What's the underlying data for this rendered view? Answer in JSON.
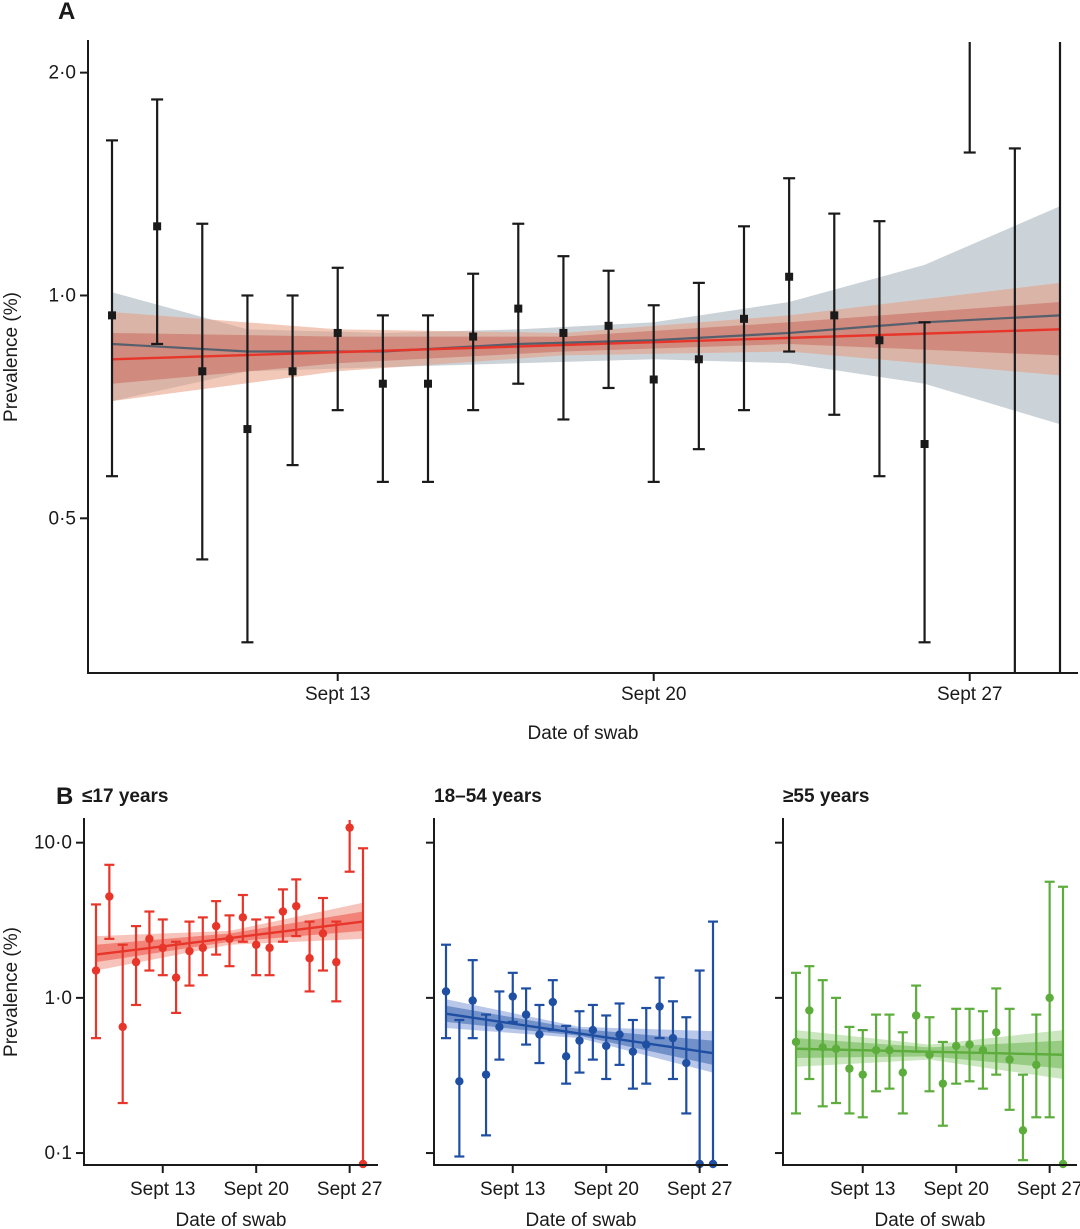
{
  "figure": {
    "panel_a_letter": "A",
    "panel_b_letter": "B"
  },
  "chart_data": [
    {
      "id": "A",
      "type": "scatter",
      "title": "",
      "xlabel": "Date of swab",
      "ylabel": "Prevalence (%)",
      "yscale": "log",
      "ylim": [
        0.31,
        2.2
      ],
      "xlim": [
        "2020-09-08",
        "2020-09-30"
      ],
      "x_ticks": [
        {
          "date": "2020-09-13",
          "label": "Sept 13"
        },
        {
          "date": "2020-09-20",
          "label": "Sept 20"
        },
        {
          "date": "2020-09-27",
          "label": "Sept 27"
        }
      ],
      "y_ticks": [
        {
          "value": 0.5,
          "label": "0·5"
        },
        {
          "value": 1.0,
          "label": "1·0"
        },
        {
          "value": 2.0,
          "label": "2·0"
        }
      ],
      "grid": false,
      "colors": {
        "points": "#1a1a1a",
        "fit_exponential": "#e8352a",
        "fit_spline": "#55606c",
        "band_exponential": "#e89a7e",
        "band_spline": "#b9c4cc"
      },
      "points": [
        {
          "x": "2020-09-08",
          "y": 0.94,
          "lo": 0.57,
          "hi": 1.62
        },
        {
          "x": "2020-09-09",
          "y": 1.24,
          "lo": 0.86,
          "hi": 1.84
        },
        {
          "x": "2020-09-10",
          "y": 0.79,
          "lo": 0.44,
          "hi": 1.25
        },
        {
          "x": "2020-09-11",
          "y": 0.66,
          "lo": 0.34,
          "hi": 1.0
        },
        {
          "x": "2020-09-12",
          "y": 0.79,
          "lo": 0.59,
          "hi": 1.0
        },
        {
          "x": "2020-09-13",
          "y": 0.89,
          "lo": 0.7,
          "hi": 1.09
        },
        {
          "x": "2020-09-14",
          "y": 0.76,
          "lo": 0.56,
          "hi": 0.94
        },
        {
          "x": "2020-09-15",
          "y": 0.76,
          "lo": 0.56,
          "hi": 0.94
        },
        {
          "x": "2020-09-16",
          "y": 0.88,
          "lo": 0.7,
          "hi": 1.07
        },
        {
          "x": "2020-09-17",
          "y": 0.96,
          "lo": 0.76,
          "hi": 1.25
        },
        {
          "x": "2020-09-18",
          "y": 0.89,
          "lo": 0.68,
          "hi": 1.13
        },
        {
          "x": "2020-09-19",
          "y": 0.91,
          "lo": 0.75,
          "hi": 1.08
        },
        {
          "x": "2020-09-20",
          "y": 0.77,
          "lo": 0.56,
          "hi": 0.97
        },
        {
          "x": "2020-09-21",
          "y": 0.82,
          "lo": 0.62,
          "hi": 1.04
        },
        {
          "x": "2020-09-22",
          "y": 0.93,
          "lo": 0.7,
          "hi": 1.24
        },
        {
          "x": "2020-09-23",
          "y": 1.06,
          "lo": 0.84,
          "hi": 1.44
        },
        {
          "x": "2020-09-24",
          "y": 0.94,
          "lo": 0.69,
          "hi": 1.29
        },
        {
          "x": "2020-09-25",
          "y": 0.87,
          "lo": 0.57,
          "hi": 1.26
        },
        {
          "x": "2020-09-26",
          "y": 0.63,
          "lo": 0.34,
          "hi": 0.92
        },
        {
          "x": "2020-09-27",
          "y": null,
          "lo": 1.56,
          "hi": 2.2
        },
        {
          "x": "2020-09-28",
          "y": null,
          "lo": 0.31,
          "hi": 1.58
        },
        {
          "x": "2020-09-29",
          "y": null,
          "lo": 0.31,
          "hi": 2.2
        }
      ],
      "fits": [
        {
          "kind": "exponential",
          "line": [
            {
              "x": "2020-09-08",
              "y": 0.82
            },
            {
              "x": "2020-09-29",
              "y": 0.9
            }
          ],
          "band_outer": [
            {
              "x": "2020-09-08",
              "lo": 0.72,
              "hi": 0.95
            },
            {
              "x": "2020-09-13",
              "lo": 0.79,
              "hi": 0.9
            },
            {
              "x": "2020-09-18",
              "lo": 0.83,
              "hi": 0.89
            },
            {
              "x": "2020-09-23",
              "lo": 0.84,
              "hi": 0.94
            },
            {
              "x": "2020-09-29",
              "lo": 0.78,
              "hi": 1.04
            }
          ],
          "band_inner": [
            {
              "x": "2020-09-08",
              "lo": 0.76,
              "hi": 0.89
            },
            {
              "x": "2020-09-13",
              "lo": 0.81,
              "hi": 0.88
            },
            {
              "x": "2020-09-18",
              "lo": 0.84,
              "hi": 0.88
            },
            {
              "x": "2020-09-23",
              "lo": 0.86,
              "hi": 0.92
            },
            {
              "x": "2020-09-29",
              "lo": 0.83,
              "hi": 0.98
            }
          ]
        },
        {
          "kind": "spline",
          "line": [
            {
              "x": "2020-09-08",
              "y": 0.86
            },
            {
              "x": "2020-09-11",
              "y": 0.84
            },
            {
              "x": "2020-09-14",
              "y": 0.84
            },
            {
              "x": "2020-09-17",
              "y": 0.86
            },
            {
              "x": "2020-09-20",
              "y": 0.87
            },
            {
              "x": "2020-09-23",
              "y": 0.89
            },
            {
              "x": "2020-09-26",
              "y": 0.92
            },
            {
              "x": "2020-09-29",
              "y": 0.94
            }
          ],
          "band": [
            {
              "x": "2020-09-08",
              "lo": 0.72,
              "hi": 1.01
            },
            {
              "x": "2020-09-11",
              "lo": 0.79,
              "hi": 0.9
            },
            {
              "x": "2020-09-14",
              "lo": 0.8,
              "hi": 0.89
            },
            {
              "x": "2020-09-17",
              "lo": 0.81,
              "hi": 0.9
            },
            {
              "x": "2020-09-20",
              "lo": 0.82,
              "hi": 0.92
            },
            {
              "x": "2020-09-23",
              "lo": 0.81,
              "hi": 0.98
            },
            {
              "x": "2020-09-26",
              "lo": 0.76,
              "hi": 1.1
            },
            {
              "x": "2020-09-29",
              "lo": 0.67,
              "hi": 1.32
            }
          ]
        }
      ]
    },
    {
      "id": "B1",
      "type": "scatter",
      "title": "≤17 years",
      "xlabel": "Date of swab",
      "ylabel": "Prevalence (%)",
      "yscale": "log",
      "ylim": [
        0.085,
        14
      ],
      "xlim": [
        "2020-09-08",
        "2020-09-29"
      ],
      "x_ticks": [
        {
          "date": "2020-09-13",
          "label": "Sept 13"
        },
        {
          "date": "2020-09-20",
          "label": "Sept 20"
        },
        {
          "date": "2020-09-27",
          "label": "Sept 27"
        }
      ],
      "y_ticks": [
        {
          "value": 0.1,
          "label": "0·1"
        },
        {
          "value": 1.0,
          "label": "1·0"
        },
        {
          "value": 10.0,
          "label": "10·0"
        }
      ],
      "color": "#e8352a",
      "band_color": "#f29d8e",
      "points": [
        {
          "x": "2020-09-08",
          "y": 1.5,
          "lo": 0.55,
          "hi": 4.0
        },
        {
          "x": "2020-09-09",
          "y": 4.5,
          "lo": 2.4,
          "hi": 7.2
        },
        {
          "x": "2020-09-10",
          "y": 0.65,
          "lo": 0.21,
          "hi": 2.2
        },
        {
          "x": "2020-09-11",
          "y": 1.7,
          "lo": 0.9,
          "hi": 2.9
        },
        {
          "x": "2020-09-12",
          "y": 2.4,
          "lo": 1.5,
          "hi": 3.6
        },
        {
          "x": "2020-09-13",
          "y": 2.1,
          "lo": 1.4,
          "hi": 3.2
        },
        {
          "x": "2020-09-14",
          "y": 1.35,
          "lo": 0.8,
          "hi": 2.3
        },
        {
          "x": "2020-09-15",
          "y": 2.0,
          "lo": 1.2,
          "hi": 3.1
        },
        {
          "x": "2020-09-16",
          "y": 2.1,
          "lo": 1.4,
          "hi": 3.3
        },
        {
          "x": "2020-09-17",
          "y": 2.9,
          "lo": 1.9,
          "hi": 4.2
        },
        {
          "x": "2020-09-18",
          "y": 2.4,
          "lo": 1.6,
          "hi": 3.4
        },
        {
          "x": "2020-09-19",
          "y": 3.3,
          "lo": 2.3,
          "hi": 4.6
        },
        {
          "x": "2020-09-20",
          "y": 2.2,
          "lo": 1.4,
          "hi": 3.2
        },
        {
          "x": "2020-09-21",
          "y": 2.1,
          "lo": 1.4,
          "hi": 3.3
        },
        {
          "x": "2020-09-22",
          "y": 3.6,
          "lo": 2.3,
          "hi": 5.0
        },
        {
          "x": "2020-09-23",
          "y": 3.9,
          "lo": 2.5,
          "hi": 5.8
        },
        {
          "x": "2020-09-24",
          "y": 1.8,
          "lo": 1.1,
          "hi": 3.1
        },
        {
          "x": "2020-09-25",
          "y": 2.6,
          "lo": 1.5,
          "hi": 4.4
        },
        {
          "x": "2020-09-26",
          "y": 1.7,
          "lo": 0.95,
          "hi": 3.1
        },
        {
          "x": "2020-09-27",
          "y": 12.5,
          "lo": 6.5,
          "hi": 14
        },
        {
          "x": "2020-09-28",
          "y": 0.085,
          "lo": 0.085,
          "hi": 9.2
        }
      ],
      "fit": {
        "line": [
          {
            "x": "2020-09-08",
            "y": 1.9
          },
          {
            "x": "2020-09-28",
            "y": 3.1
          }
        ],
        "band_outer": [
          {
            "x": "2020-09-08",
            "lo": 1.5,
            "hi": 2.5
          },
          {
            "x": "2020-09-18",
            "lo": 2.2,
            "hi": 2.7
          },
          {
            "x": "2020-09-28",
            "lo": 2.4,
            "hi": 4.1
          }
        ],
        "band_inner": [
          {
            "x": "2020-09-08",
            "lo": 1.7,
            "hi": 2.2
          },
          {
            "x": "2020-09-18",
            "lo": 2.3,
            "hi": 2.6
          },
          {
            "x": "2020-09-28",
            "lo": 2.7,
            "hi": 3.6
          }
        ]
      }
    },
    {
      "id": "B2",
      "type": "scatter",
      "title": "18–54 years",
      "xlabel": "Date of swab",
      "yscale": "log",
      "ylim": [
        0.085,
        14
      ],
      "xlim": [
        "2020-09-08",
        "2020-09-29"
      ],
      "x_ticks": [
        {
          "date": "2020-09-13",
          "label": "Sept 13"
        },
        {
          "date": "2020-09-20",
          "label": "Sept 20"
        },
        {
          "date": "2020-09-27",
          "label": "Sept 27"
        }
      ],
      "color": "#1f4fa3",
      "band_color": "#8aa2d8",
      "points": [
        {
          "x": "2020-09-08",
          "y": 1.1,
          "lo": 0.55,
          "hi": 2.2
        },
        {
          "x": "2020-09-09",
          "y": 0.29,
          "lo": 0.095,
          "hi": 0.72
        },
        {
          "x": "2020-09-10",
          "y": 0.96,
          "lo": 0.55,
          "hi": 1.75
        },
        {
          "x": "2020-09-11",
          "y": 0.32,
          "lo": 0.13,
          "hi": 0.78
        },
        {
          "x": "2020-09-12",
          "y": 0.65,
          "lo": 0.4,
          "hi": 1.1
        },
        {
          "x": "2020-09-13",
          "y": 1.02,
          "lo": 0.7,
          "hi": 1.45
        },
        {
          "x": "2020-09-14",
          "y": 0.78,
          "lo": 0.5,
          "hi": 1.15
        },
        {
          "x": "2020-09-15",
          "y": 0.58,
          "lo": 0.38,
          "hi": 0.9
        },
        {
          "x": "2020-09-16",
          "y": 0.94,
          "lo": 0.62,
          "hi": 1.3
        },
        {
          "x": "2020-09-17",
          "y": 0.42,
          "lo": 0.28,
          "hi": 0.66
        },
        {
          "x": "2020-09-18",
          "y": 0.53,
          "lo": 0.33,
          "hi": 0.82
        },
        {
          "x": "2020-09-19",
          "y": 0.62,
          "lo": 0.4,
          "hi": 0.9
        },
        {
          "x": "2020-09-20",
          "y": 0.49,
          "lo": 0.3,
          "hi": 0.77
        },
        {
          "x": "2020-09-21",
          "y": 0.58,
          "lo": 0.37,
          "hi": 0.92
        },
        {
          "x": "2020-09-22",
          "y": 0.45,
          "lo": 0.26,
          "hi": 0.72
        },
        {
          "x": "2020-09-23",
          "y": 0.5,
          "lo": 0.28,
          "hi": 0.86
        },
        {
          "x": "2020-09-24",
          "y": 0.88,
          "lo": 0.55,
          "hi": 1.35
        },
        {
          "x": "2020-09-25",
          "y": 0.55,
          "lo": 0.3,
          "hi": 0.95
        },
        {
          "x": "2020-09-26",
          "y": 0.38,
          "lo": 0.18,
          "hi": 0.75
        },
        {
          "x": "2020-09-27",
          "y": 0.085,
          "lo": 0.085,
          "hi": 1.5
        },
        {
          "x": "2020-09-28",
          "y": 0.085,
          "lo": 0.085,
          "hi": 3.1
        }
      ],
      "fit": {
        "line": [
          {
            "x": "2020-09-08",
            "y": 0.79
          },
          {
            "x": "2020-09-28",
            "y": 0.44
          }
        ],
        "band_outer": [
          {
            "x": "2020-09-08",
            "lo": 0.64,
            "hi": 0.98
          },
          {
            "x": "2020-09-18",
            "lo": 0.55,
            "hi": 0.65
          },
          {
            "x": "2020-09-28",
            "lo": 0.33,
            "hi": 0.61
          }
        ],
        "band_inner": [
          {
            "x": "2020-09-08",
            "lo": 0.7,
            "hi": 0.89
          },
          {
            "x": "2020-09-18",
            "lo": 0.57,
            "hi": 0.63
          },
          {
            "x": "2020-09-28",
            "lo": 0.37,
            "hi": 0.53
          }
        ]
      }
    },
    {
      "id": "B3",
      "type": "scatter",
      "title": "≥55 years",
      "xlabel": "Date of swab",
      "yscale": "log",
      "ylim": [
        0.085,
        14
      ],
      "xlim": [
        "2020-09-08",
        "2020-09-29"
      ],
      "x_ticks": [
        {
          "date": "2020-09-13",
          "label": "Sept 13"
        },
        {
          "date": "2020-09-20",
          "label": "Sept 20"
        },
        {
          "date": "2020-09-27",
          "label": "Sept 27"
        }
      ],
      "color": "#5cad3c",
      "band_color": "#a9d596",
      "points": [
        {
          "x": "2020-09-08",
          "y": 0.52,
          "lo": 0.18,
          "hi": 1.45
        },
        {
          "x": "2020-09-09",
          "y": 0.83,
          "lo": 0.3,
          "hi": 1.6
        },
        {
          "x": "2020-09-10",
          "y": 0.48,
          "lo": 0.2,
          "hi": 1.3
        },
        {
          "x": "2020-09-11",
          "y": 0.47,
          "lo": 0.21,
          "hi": 1.0
        },
        {
          "x": "2020-09-12",
          "y": 0.35,
          "lo": 0.18,
          "hi": 0.65
        },
        {
          "x": "2020-09-13",
          "y": 0.32,
          "lo": 0.17,
          "hi": 0.62
        },
        {
          "x": "2020-09-14",
          "y": 0.46,
          "lo": 0.25,
          "hi": 0.78
        },
        {
          "x": "2020-09-15",
          "y": 0.46,
          "lo": 0.26,
          "hi": 0.78
        },
        {
          "x": "2020-09-16",
          "y": 0.33,
          "lo": 0.18,
          "hi": 0.6
        },
        {
          "x": "2020-09-17",
          "y": 0.77,
          "lo": 0.45,
          "hi": 1.2
        },
        {
          "x": "2020-09-18",
          "y": 0.43,
          "lo": 0.25,
          "hi": 0.75
        },
        {
          "x": "2020-09-19",
          "y": 0.28,
          "lo": 0.15,
          "hi": 0.52
        },
        {
          "x": "2020-09-20",
          "y": 0.49,
          "lo": 0.28,
          "hi": 0.85
        },
        {
          "x": "2020-09-21",
          "y": 0.5,
          "lo": 0.29,
          "hi": 0.85
        },
        {
          "x": "2020-09-22",
          "y": 0.46,
          "lo": 0.26,
          "hi": 0.82
        },
        {
          "x": "2020-09-23",
          "y": 0.6,
          "lo": 0.32,
          "hi": 1.15
        },
        {
          "x": "2020-09-24",
          "y": 0.4,
          "lo": 0.19,
          "hi": 0.85
        },
        {
          "x": "2020-09-25",
          "y": 0.14,
          "lo": 0.09,
          "hi": 0.32
        },
        {
          "x": "2020-09-26",
          "y": 0.37,
          "lo": 0.17,
          "hi": 0.78
        },
        {
          "x": "2020-09-27",
          "y": 1.0,
          "lo": 0.17,
          "hi": 5.6
        },
        {
          "x": "2020-09-28",
          "y": 0.085,
          "lo": 0.085,
          "hi": 5.2
        }
      ],
      "fit": {
        "line": [
          {
            "x": "2020-09-08",
            "y": 0.47
          },
          {
            "x": "2020-09-28",
            "y": 0.43
          }
        ],
        "band_outer": [
          {
            "x": "2020-09-08",
            "lo": 0.36,
            "hi": 0.62
          },
          {
            "x": "2020-09-18",
            "lo": 0.4,
            "hi": 0.5
          },
          {
            "x": "2020-09-28",
            "lo": 0.3,
            "hi": 0.62
          }
        ],
        "band_inner": [
          {
            "x": "2020-09-08",
            "lo": 0.41,
            "hi": 0.55
          },
          {
            "x": "2020-09-18",
            "lo": 0.42,
            "hi": 0.48
          },
          {
            "x": "2020-09-28",
            "lo": 0.35,
            "hi": 0.53
          }
        ]
      }
    }
  ]
}
